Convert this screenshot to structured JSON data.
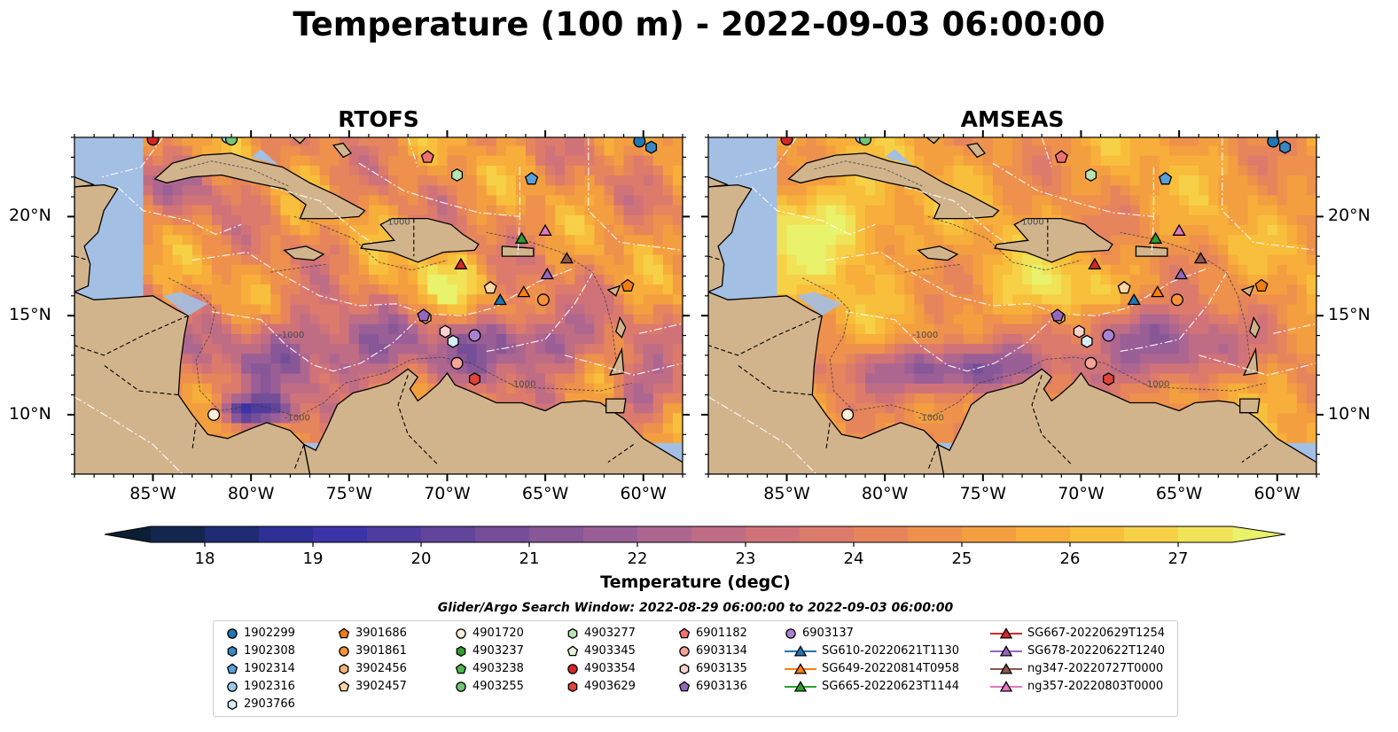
{
  "title": "Temperature (100 m) - 2022-09-03 06:00:00",
  "panels": [
    {
      "title": "RTOFS",
      "model": "rtofs"
    },
    {
      "title": "AMSEAS",
      "model": "amseas"
    }
  ],
  "axes": {
    "lon_ticks": [
      "85°W",
      "80°W",
      "75°W",
      "70°W",
      "65°W",
      "60°W"
    ],
    "lat_ticks": [
      "20°N",
      "15°N",
      "10°N"
    ],
    "lon_range": [
      -89,
      -58
    ],
    "lat_range": [
      7,
      24
    ]
  },
  "colorbar": {
    "label": "Temperature (degC)",
    "ticks": [
      "18",
      "19",
      "20",
      "21",
      "22",
      "23",
      "24",
      "25",
      "26",
      "27"
    ],
    "min": 17.5,
    "max": 27.5,
    "extend": "both",
    "colors": [
      "#0a1f33",
      "#13274e",
      "#1f2c72",
      "#2e3096",
      "#3d33a8",
      "#503b9e",
      "#62449a",
      "#744e98",
      "#875797",
      "#9a5f96",
      "#ad6690",
      "#bf6c85",
      "#cf7379",
      "#dc7b6c",
      "#e6855c",
      "#ee914c",
      "#f39f40",
      "#f7ae3a",
      "#f8bf3c",
      "#f6d148",
      "#f0e358",
      "#e8f26a"
    ]
  },
  "isobath_label": "-1000",
  "search_window": "Glider/Argo Search Window: 2022-08-29 06:00:00 to 2022-09-03 06:00:00",
  "legend": [
    {
      "label": "1902299",
      "marker": "circle",
      "color": "#1f77b4"
    },
    {
      "label": "1902308",
      "marker": "hexagon",
      "color": "#3a87c4"
    },
    {
      "label": "1902314",
      "marker": "pentagon",
      "color": "#5a9fd8"
    },
    {
      "label": "1902316",
      "marker": "circle",
      "color": "#9ecae9"
    },
    {
      "label": "2903766",
      "marker": "hexagon",
      "color": "#d6ecf8"
    },
    {
      "label": "3901686",
      "marker": "pentagon",
      "color": "#f07d0f"
    },
    {
      "label": "3901861",
      "marker": "circle",
      "color": "#f7923a"
    },
    {
      "label": "3902456",
      "marker": "hexagon",
      "color": "#fbb37a"
    },
    {
      "label": "3902457",
      "marker": "pentagon",
      "color": "#fdd4a8"
    },
    {
      "label": "4901720",
      "marker": "circle",
      "color": "#feeed8"
    },
    {
      "label": "4903237",
      "marker": "hexagon",
      "color": "#2ca02c"
    },
    {
      "label": "4903238",
      "marker": "pentagon",
      "color": "#4cb84c"
    },
    {
      "label": "4903255",
      "marker": "circle",
      "color": "#74c476"
    },
    {
      "label": "4903277",
      "marker": "hexagon",
      "color": "#b7e4b0"
    },
    {
      "label": "4903345",
      "marker": "pentagon",
      "color": "#e3f6d9"
    },
    {
      "label": "4903354",
      "marker": "circle",
      "color": "#d62728"
    },
    {
      "label": "4903629",
      "marker": "hexagon",
      "color": "#e0443a"
    },
    {
      "label": "6901182",
      "marker": "pentagon",
      "color": "#f07070"
    },
    {
      "label": "6903134",
      "marker": "circle",
      "color": "#f6a39a"
    },
    {
      "label": "6903135",
      "marker": "hexagon",
      "color": "#fcd1cc"
    },
    {
      "label": "6903136",
      "marker": "pentagon",
      "color": "#9467bd"
    },
    {
      "label": "6903137",
      "marker": "circle",
      "color": "#a983d0"
    },
    {
      "label": "SG610-20220621T1130",
      "marker": "triangle-line",
      "color": "#1f77b4"
    },
    {
      "label": "SG649-20220814T0958",
      "marker": "triangle-line",
      "color": "#ff7f0e"
    },
    {
      "label": "SG665-20220623T1144",
      "marker": "triangle-line",
      "color": "#2ca02c"
    },
    {
      "label": "SG667-20220629T1254",
      "marker": "triangle-line",
      "color": "#d62728"
    },
    {
      "label": "SG678-20220622T1240",
      "marker": "triangle-line",
      "color": "#9467bd"
    },
    {
      "label": "ng347-20220727T0000",
      "marker": "triangle-line",
      "color": "#8c564b"
    },
    {
      "label": "ng357-20220803T0000",
      "marker": "triangle-line",
      "color": "#e377c2"
    }
  ],
  "platforms": [
    {
      "id": "1902299",
      "lon": -60.2,
      "lat": 23.8
    },
    {
      "id": "1902308",
      "lon": -59.6,
      "lat": 23.5
    },
    {
      "id": "1902314",
      "lon": -65.7,
      "lat": 21.9
    },
    {
      "id": "1902316",
      "lon": -81.2,
      "lat": 24.0
    },
    {
      "id": "2903766",
      "lon": -69.7,
      "lat": 13.7
    },
    {
      "id": "3901686",
      "lon": -60.8,
      "lat": 16.5
    },
    {
      "id": "3901861",
      "lon": -65.1,
      "lat": 15.8
    },
    {
      "id": "3902456",
      "lon": -71.1,
      "lat": 14.9
    },
    {
      "id": "3902457",
      "lon": -67.8,
      "lat": 16.4
    },
    {
      "id": "4901720",
      "lon": -81.9,
      "lat": 10.0
    },
    {
      "id": "4903255",
      "lon": -81.0,
      "lat": 23.9
    },
    {
      "id": "4903277",
      "lon": -69.5,
      "lat": 22.1
    },
    {
      "id": "4903354",
      "lon": -85.0,
      "lat": 23.9
    },
    {
      "id": "4903629",
      "lon": -68.6,
      "lat": 11.8
    },
    {
      "id": "6901182",
      "lon": -71.0,
      "lat": 23.0
    },
    {
      "id": "6903134",
      "lon": -69.5,
      "lat": 12.6
    },
    {
      "id": "6903135",
      "lon": -70.1,
      "lat": 14.2
    },
    {
      "id": "6903136",
      "lon": -71.2,
      "lat": 15.0
    },
    {
      "id": "6903137",
      "lon": -68.6,
      "lat": 14.0
    },
    {
      "id": "SG610-20220621T1130",
      "lon": -67.3,
      "lat": 15.8
    },
    {
      "id": "SG649-20220814T0958",
      "lon": -66.1,
      "lat": 16.2
    },
    {
      "id": "SG665-20220623T1144",
      "lon": -66.2,
      "lat": 18.9
    },
    {
      "id": "SG667-20220629T1254",
      "lon": -69.3,
      "lat": 17.6
    },
    {
      "id": "SG678-20220622T1240",
      "lon": -64.9,
      "lat": 17.1
    },
    {
      "id": "ng347-20220727T0000",
      "lon": -63.9,
      "lat": 17.9
    },
    {
      "id": "ng357-20220803T0000",
      "lon": -65.0,
      "lat": 19.3
    }
  ]
}
